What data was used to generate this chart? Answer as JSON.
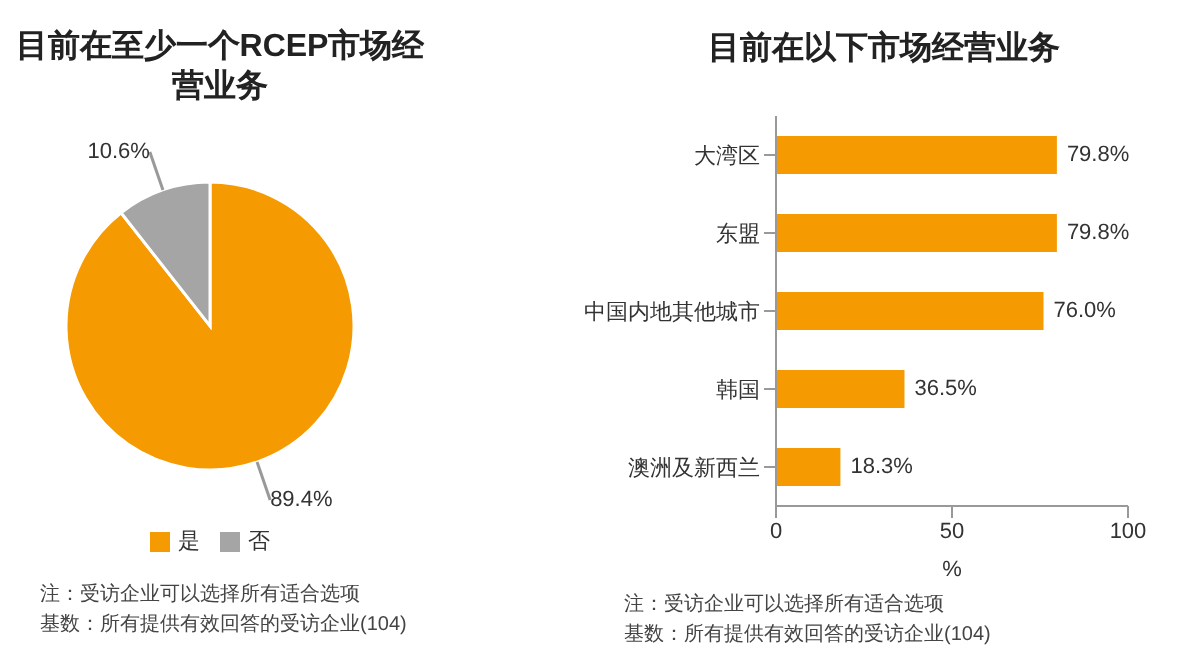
{
  "chart_data": [
    {
      "type": "pie",
      "title": "目前在至少一个RCEP市场经营业务",
      "categories": [
        "是",
        "否"
      ],
      "values": [
        89.4,
        10.6
      ],
      "colors": [
        "#f59a00",
        "#a5a5a5"
      ],
      "value_labels": [
        "89.4%",
        "10.6%"
      ],
      "legend": "bottom",
      "annotations": [
        "注：受访企业可以选择所有适合选项",
        "基数：所有提供有效回答的受访企业(104)"
      ]
    },
    {
      "type": "bar",
      "orientation": "horizontal",
      "title": "目前在以下市场经营业务",
      "categories": [
        "大湾区",
        "东盟",
        "中国内地其他城市",
        "韩国",
        "澳洲及新西兰"
      ],
      "values": [
        79.8,
        79.8,
        76.0,
        36.5,
        18.3
      ],
      "color": "#f59a00",
      "value_labels": [
        "79.8%",
        "79.8%",
        "76.0%",
        "36.5%",
        "18.3%"
      ],
      "xlim": [
        0,
        100
      ],
      "xticks": [
        0,
        50,
        100
      ],
      "xlabel": "%",
      "grid": false,
      "legend": false,
      "annotations": [
        "注：受访企业可以选择所有适合选项",
        "基数：所有提供有效回答的受访企业(104)"
      ]
    }
  ]
}
